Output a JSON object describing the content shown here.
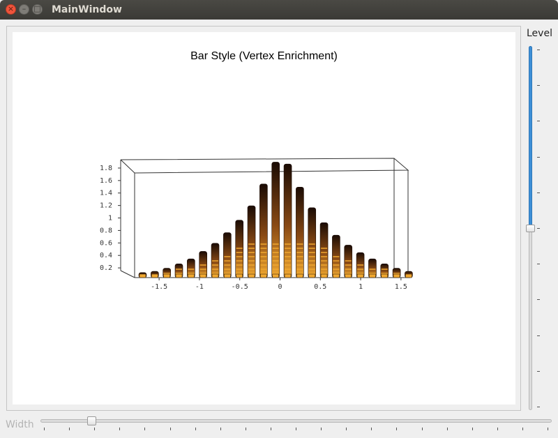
{
  "window": {
    "title": "MainWindow",
    "close_glyph": "×",
    "min_glyph": "–",
    "max_glyph": "□"
  },
  "controls": {
    "level_label": "Level",
    "level_value": 0.5,
    "level_tick_count": 11,
    "width_label": "Width",
    "width_value": 0.1,
    "width_tick_count": 21,
    "slider_fill_color": "#3d8fd6"
  },
  "chart_data": {
    "type": "bar",
    "title": "Bar Style (Vertex Enrichment)",
    "x_ticks": [
      "-1.5",
      "-1",
      "-0.5",
      "0",
      "0.5",
      "1",
      "1.5"
    ],
    "y_ticks": [
      "0.2",
      "0.4",
      "0.6",
      "0.8",
      "1",
      "1.2",
      "1.4",
      "1.6",
      "1.8"
    ],
    "xlim": [
      -1.7,
      1.7
    ],
    "zlim": [
      0,
      1.9
    ],
    "x": [
      -1.7,
      -1.55,
      -1.4,
      -1.25,
      -1.1,
      -0.95,
      -0.8,
      -0.65,
      -0.5,
      -0.35,
      -0.2,
      -0.05,
      0.1,
      0.25,
      0.4,
      0.55,
      0.7,
      0.85,
      1.0,
      1.15,
      1.3,
      1.45,
      1.6
    ],
    "values": [
      0.08,
      0.1,
      0.15,
      0.22,
      0.3,
      0.42,
      0.55,
      0.72,
      0.92,
      1.15,
      1.5,
      1.85,
      1.82,
      1.45,
      1.12,
      0.88,
      0.68,
      0.52,
      0.4,
      0.3,
      0.22,
      0.15,
      0.1
    ],
    "colors": {
      "bar_top": "#f0a830",
      "bar_dark": "#1a0b04",
      "bar_mid": "#8a4a14",
      "frame": "#333333"
    }
  }
}
